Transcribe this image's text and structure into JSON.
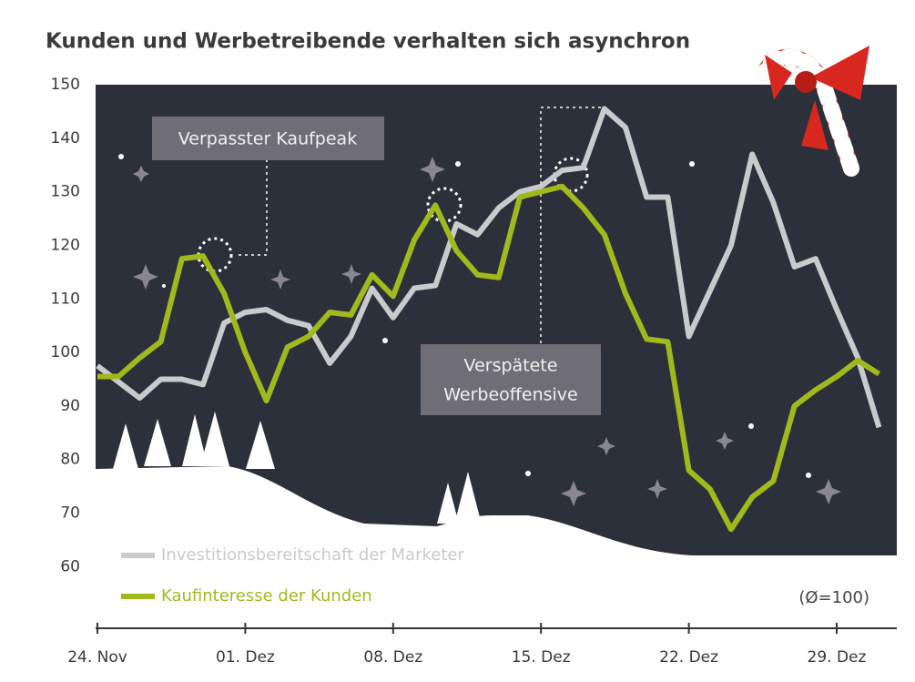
{
  "chart_data": {
    "type": "line",
    "title": "Kunden und Werbetreibende verhalten sich asynchron",
    "categories": [
      "24. Nov",
      null,
      null,
      null,
      null,
      null,
      null,
      "01. Dez",
      null,
      null,
      null,
      null,
      null,
      null,
      "08. Dez",
      null,
      null,
      null,
      null,
      null,
      null,
      "15. Dez",
      null,
      null,
      null,
      null,
      null,
      null,
      "22. Dez",
      null,
      null,
      null,
      null,
      null,
      null,
      "29. Dez",
      null,
      null
    ],
    "series": [
      {
        "name": "Investitionsbereitschaft der Marketer",
        "color": "#c9cacc",
        "values": [
          97.5,
          94.5,
          91.5,
          95,
          95,
          94,
          105.5,
          107.5,
          108,
          106,
          105,
          98,
          103,
          112,
          106.5,
          112,
          112.5,
          124,
          122,
          127,
          130,
          131,
          134,
          134.5,
          145.5,
          142,
          129,
          129,
          103,
          111.5,
          120,
          137,
          128,
          116,
          117.5,
          108,
          99,
          86
        ]
      },
      {
        "name": "Kaufinteresse der Kunden",
        "color": "#a2b91c",
        "values": [
          95.5,
          95.5,
          99,
          102,
          117.5,
          118,
          111,
          100,
          91,
          101,
          103,
          107.5,
          107,
          114.5,
          110.5,
          121,
          127.5,
          119,
          114.5,
          114,
          129,
          130,
          131,
          127,
          122,
          111,
          102.5,
          102,
          78,
          74.5,
          67,
          73,
          76,
          90,
          93,
          95.5,
          98.5,
          96
        ]
      }
    ],
    "ylim": [
      48.5,
      150
    ],
    "yticks": [
      60,
      70,
      80,
      90,
      100,
      110,
      120,
      130,
      140,
      150
    ],
    "annotations": [
      "Verpasster Kaufpeak",
      "Verspätete",
      "Werbeoffensive",
      "(Ø=100)"
    ]
  }
}
